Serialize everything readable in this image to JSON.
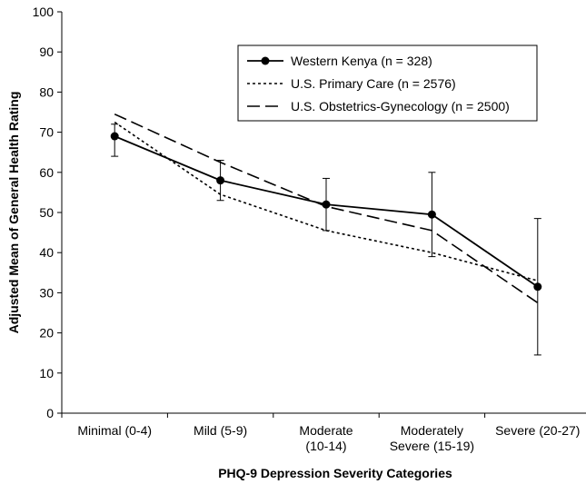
{
  "chart_data": {
    "type": "line",
    "xlabel": "PHQ-9 Depression Severity Categories",
    "ylabel": "Adjusted Mean of General Health Rating",
    "ylim": [
      0,
      100
    ],
    "yticks": [
      0,
      10,
      20,
      30,
      40,
      50,
      60,
      70,
      80,
      90,
      100
    ],
    "categories": [
      [
        "Minimal (0-4)"
      ],
      [
        "Mild (5-9)"
      ],
      [
        "Moderate",
        "(10-14)"
      ],
      [
        "Moderately",
        "Severe (15-19)"
      ],
      [
        "Severe (20-27)"
      ]
    ],
    "grid": false,
    "legend": "top-right",
    "series": [
      {
        "name": "Western Kenya (n = 328)",
        "style": "solid-with-markers",
        "values": [
          69,
          58,
          52,
          49.5,
          31.5
        ],
        "error_low": [
          64,
          53,
          45.5,
          39,
          14.5
        ],
        "error_high": [
          72,
          63,
          58.5,
          60,
          48.5
        ]
      },
      {
        "name": "U.S. Primary Care (n = 2576)",
        "style": "short-dash",
        "values": [
          72.5,
          54.5,
          45.5,
          40,
          33
        ]
      },
      {
        "name": "U.S. Obstetrics-Gynecology (n = 2500)",
        "style": "long-dash",
        "values": [
          74.5,
          62.5,
          51.5,
          45.5,
          27.5
        ]
      }
    ],
    "colors": {
      "line": "#000000",
      "background": "#ffffff"
    }
  }
}
